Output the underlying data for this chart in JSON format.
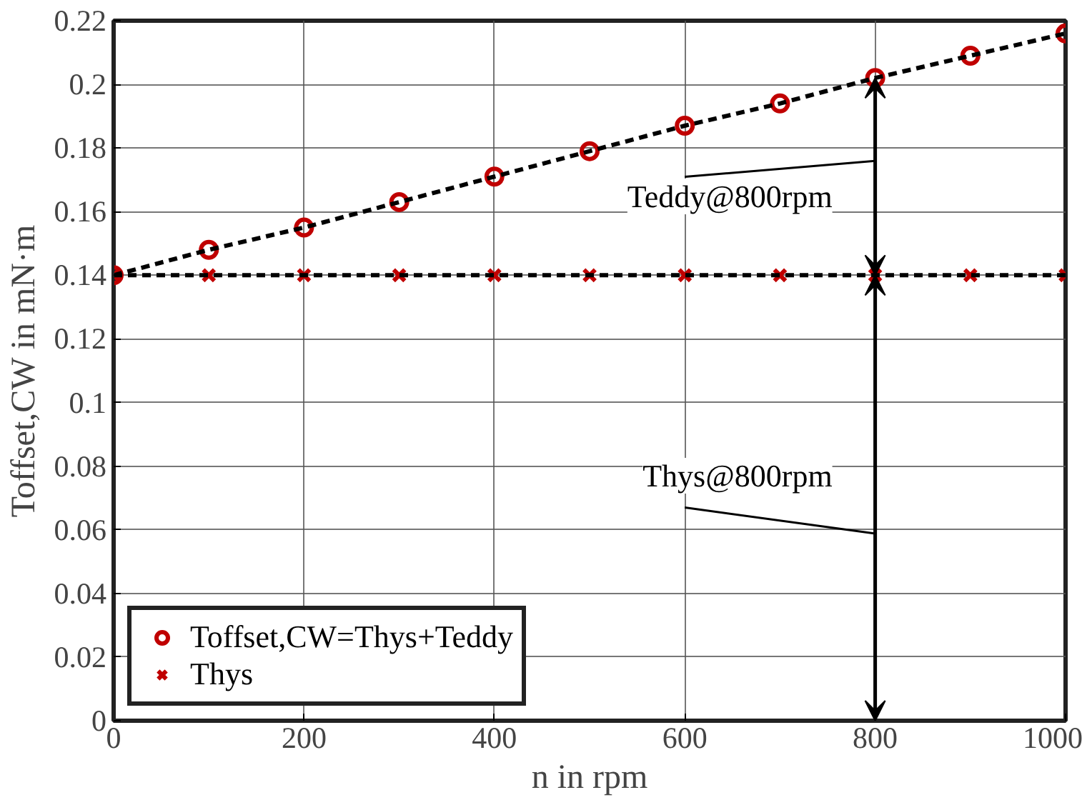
{
  "chart_data": {
    "type": "scatter",
    "xlabel": "n in rpm",
    "ylabel": "Toffset,CW in mN·m",
    "x": [
      0,
      100,
      200,
      300,
      400,
      500,
      600,
      700,
      800,
      900,
      1000
    ],
    "series": [
      {
        "name": "Toffset,CW=Thys+Teddy",
        "color": "#c00000",
        "marker": "circle",
        "values": [
          0.14,
          0.148,
          0.155,
          0.163,
          0.171,
          0.179,
          0.187,
          0.194,
          0.202,
          0.209,
          0.216
        ]
      },
      {
        "name": "Thys",
        "color": "#c00000",
        "marker": "cross",
        "values": [
          0.14,
          0.14,
          0.14,
          0.14,
          0.14,
          0.14,
          0.14,
          0.14,
          0.14,
          0.14,
          0.14
        ]
      },
      {
        "type": "line",
        "color": "#000000",
        "line_style": "dashed",
        "values": [
          0.14,
          0.148,
          0.155,
          0.163,
          0.171,
          0.179,
          0.187,
          0.194,
          0.202,
          0.209,
          0.216
        ]
      },
      {
        "type": "line",
        "color": "#000000",
        "line_style": "dashed",
        "values": [
          0.14,
          0.14,
          0.14,
          0.14,
          0.14,
          0.14,
          0.14,
          0.14,
          0.14,
          0.14,
          0.14
        ]
      }
    ],
    "annotations": [
      "Teddy@800rpm",
      "Thys@800rpm"
    ],
    "xlim": [
      0,
      1000
    ],
    "xticks": [
      0,
      200,
      400,
      600,
      800,
      1000
    ],
    "ylim": [
      0,
      0.22
    ],
    "yticks": [
      0,
      0.02,
      0.04,
      0.06,
      0.08,
      0.1,
      0.12,
      0.14,
      0.16,
      0.18,
      0.2,
      0.22
    ],
    "grid": true,
    "legend": "bottom left"
  }
}
